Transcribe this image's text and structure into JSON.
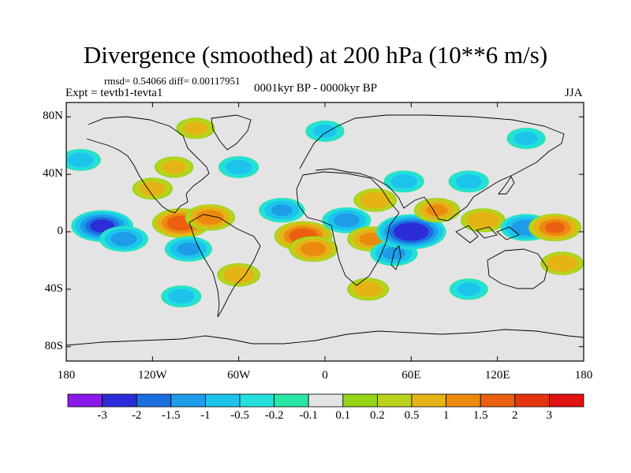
{
  "chart_data": {
    "type": "heatmap",
    "title": "Divergence (smoothed) at 200 hPa (10**6 m/s)",
    "stats": "rmsd= 0.54066 diff= 0.00117951",
    "experiment": "Expt = tevtb1-tevta1",
    "period": "0001kyr BP - 0000kyr BP",
    "season": "JJA",
    "x_ticks": [
      "180",
      "120W",
      "60W",
      "0",
      "60E",
      "120E",
      "180"
    ],
    "y_ticks": [
      "80N",
      "40N",
      "0",
      "40S",
      "80S"
    ],
    "xlim": [
      -180,
      180
    ],
    "ylim": [
      -90,
      90
    ],
    "colorbar": {
      "labels": [
        "-3",
        "-2",
        "-1.5",
        "-1",
        "-0.5",
        "-0.2",
        "-0.1",
        "0.1",
        "0.2",
        "0.5",
        "1",
        "1.5",
        "2",
        "3"
      ],
      "levels": [
        -3,
        -2,
        -1.5,
        -1,
        -0.5,
        -0.2,
        -0.1,
        0.1,
        0.2,
        0.5,
        1,
        1.5,
        2,
        3
      ],
      "colors": [
        "#8a1ae8",
        "#2c2cd8",
        "#1a6ee0",
        "#1e9ce8",
        "#1cc4ec",
        "#24e0dc",
        "#28e6a6",
        "#e4e4e4",
        "#96d418",
        "#bad21c",
        "#e4b416",
        "#ec8a10",
        "#ea6010",
        "#e4340e",
        "#e01212"
      ]
    },
    "anomalies": [
      {
        "lon": -155,
        "lat": 4,
        "value": -2.2
      },
      {
        "lon": -140,
        "lat": -5,
        "value": -1.2
      },
      {
        "lon": -100,
        "lat": 6,
        "value": 1.9
      },
      {
        "lon": -80,
        "lat": 10,
        "value": 1.3
      },
      {
        "lon": -95,
        "lat": -12,
        "value": -1.1
      },
      {
        "lon": -120,
        "lat": 30,
        "value": 0.6
      },
      {
        "lon": -105,
        "lat": 45,
        "value": 0.5
      },
      {
        "lon": -60,
        "lat": 45,
        "value": -0.6
      },
      {
        "lon": -170,
        "lat": 50,
        "value": -0.6
      },
      {
        "lon": -30,
        "lat": 15,
        "value": -1.0
      },
      {
        "lon": -15,
        "lat": -3,
        "value": 1.9
      },
      {
        "lon": -8,
        "lat": -12,
        "value": 1.2
      },
      {
        "lon": 15,
        "lat": 8,
        "value": -1.2
      },
      {
        "lon": 35,
        "lat": 22,
        "value": 0.8
      },
      {
        "lon": 32,
        "lat": -5,
        "value": 1.1
      },
      {
        "lon": 48,
        "lat": -15,
        "value": -1.1
      },
      {
        "lon": 60,
        "lat": 0,
        "value": -2.8
      },
      {
        "lon": 55,
        "lat": 35,
        "value": -0.6
      },
      {
        "lon": 78,
        "lat": 15,
        "value": 1.0
      },
      {
        "lon": 100,
        "lat": 35,
        "value": -0.6
      },
      {
        "lon": 110,
        "lat": 8,
        "value": 0.9
      },
      {
        "lon": 140,
        "lat": 3,
        "value": -1.4
      },
      {
        "lon": 160,
        "lat": 3,
        "value": 1.5
      },
      {
        "lon": 165,
        "lat": -22,
        "value": 0.8
      },
      {
        "lon": -60,
        "lat": -30,
        "value": 0.8
      },
      {
        "lon": 30,
        "lat": -40,
        "value": 0.7
      },
      {
        "lon": 100,
        "lat": -40,
        "value": -0.5
      },
      {
        "lon": -100,
        "lat": -45,
        "value": -0.6
      },
      {
        "lon": 0,
        "lat": 70,
        "value": -0.5
      },
      {
        "lon": 140,
        "lat": 65,
        "value": -0.5
      },
      {
        "lon": -90,
        "lat": 72,
        "value": 0.5
      }
    ]
  }
}
